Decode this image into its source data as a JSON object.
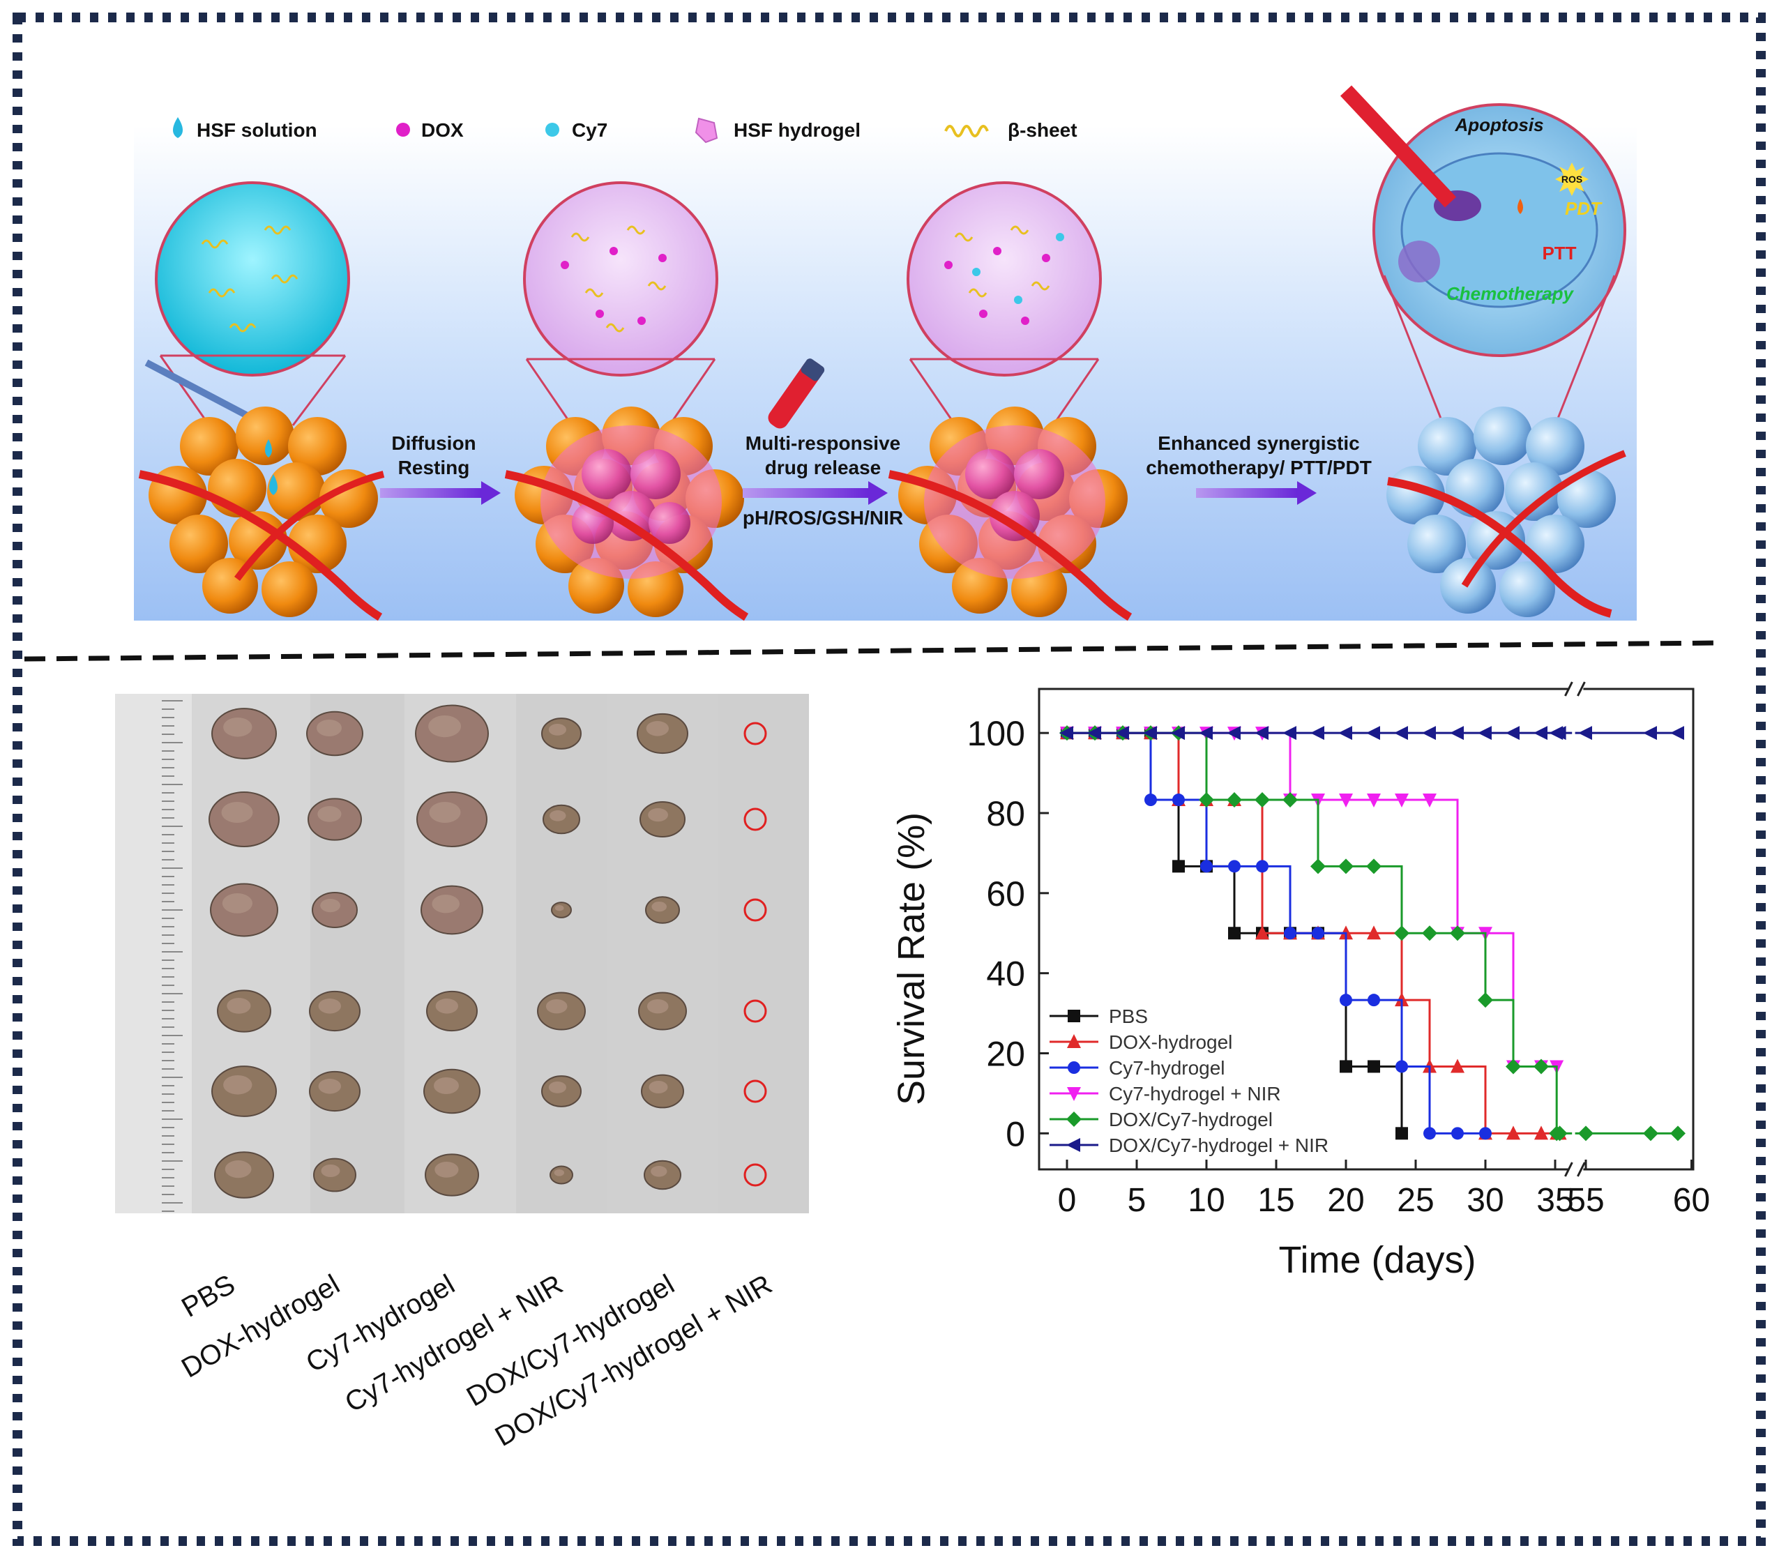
{
  "legend_top": [
    {
      "label": "HSF solution",
      "icon": "drop-icon",
      "color": "#27b8e0"
    },
    {
      "label": "DOX",
      "icon": "dot-icon",
      "color": "#e020c8"
    },
    {
      "label": "Cy7",
      "icon": "dot-icon",
      "color": "#3cc8e8"
    },
    {
      "label": "HSF hydrogel",
      "icon": "gel-icon",
      "color": "#f090e8"
    },
    {
      "label": "β-sheet",
      "icon": "coil-icon",
      "color": "#e8c020"
    }
  ],
  "steps": {
    "step1": [
      "Diffusion",
      "Resting"
    ],
    "step2": [
      "Multi-responsive",
      "drug release"
    ],
    "step2_sub": "pH/ROS/GSH/NIR",
    "step3": [
      "Enhanced synergistic",
      "chemotherapy/ PTT/PDT"
    ]
  },
  "cell_labels": {
    "apoptosis": "Apoptosis",
    "ros": "ROS",
    "pdt": "PDT",
    "ptt": "PTT",
    "chemo": "Chemotherapy"
  },
  "colors": {
    "frame": "#1c2a4a",
    "tumor": "#f08a10",
    "tumor_treated": "#8ec0ea",
    "vessel": "#e02020",
    "gel": "#f070c8",
    "arrow": "#7a3ad8",
    "lens_ring": "#d04060"
  },
  "photo": {
    "groups": [
      "PBS",
      "DOX-hydrogel",
      "Cy7-hydrogel",
      "Cy7-hydrogel + NIR",
      "DOX/Cy7-hydrogel",
      "DOX/Cy7-hydrogel + NIR"
    ]
  },
  "chart_data": {
    "type": "line",
    "xlabel": "Time (days)",
    "ylabel": "Survival Rate (%)",
    "xticks": [
      0,
      5,
      10,
      15,
      20,
      25,
      30,
      35,
      55,
      60
    ],
    "yticks": [
      0,
      20,
      40,
      60,
      80,
      100
    ],
    "ylim": [
      -9,
      111
    ],
    "axis_break": "x between 40 and 55",
    "legend_position": "bottom-left",
    "series": [
      {
        "name": "PBS",
        "color": "#111111",
        "marker": "square",
        "x": [
          0,
          2,
          4,
          6,
          8,
          10,
          12,
          14,
          16,
          18,
          20,
          22,
          24
        ],
        "y": [
          100,
          100,
          100,
          100,
          66.7,
          66.7,
          50,
          50,
          50,
          50,
          16.7,
          16.7,
          0
        ]
      },
      {
        "name": "DOX-hydrogel",
        "color": "#e02a2a",
        "marker": "triangle-up",
        "x": [
          0,
          2,
          4,
          6,
          8,
          10,
          12,
          14,
          16,
          18,
          20,
          22,
          24,
          26,
          28,
          30,
          32,
          34,
          36,
          38
        ],
        "y": [
          100,
          100,
          100,
          100,
          83.3,
          83.3,
          83.3,
          50,
          50,
          50,
          50,
          50,
          33.3,
          16.7,
          16.7,
          0,
          0,
          0,
          0,
          0
        ]
      },
      {
        "name": "Cy7-hydrogel",
        "color": "#1a2ee0",
        "marker": "circle",
        "x": [
          0,
          2,
          4,
          6,
          8,
          10,
          12,
          14,
          16,
          18,
          20,
          22,
          24,
          26,
          28,
          30
        ],
        "y": [
          100,
          100,
          100,
          83.3,
          83.3,
          66.7,
          66.7,
          66.7,
          50,
          50,
          33.3,
          33.3,
          16.7,
          0,
          0,
          0
        ]
      },
      {
        "name": "Cy7-hydrogel + NIR",
        "color": "#f020f0",
        "marker": "triangle-down",
        "x": [
          0,
          2,
          4,
          6,
          8,
          10,
          12,
          14,
          16,
          18,
          20,
          22,
          24,
          26,
          28,
          30,
          32,
          34,
          36
        ],
        "y": [
          100,
          100,
          100,
          100,
          100,
          100,
          100,
          100,
          83.3,
          83.3,
          83.3,
          83.3,
          83.3,
          83.3,
          50,
          50,
          16.7,
          16.7,
          16.7
        ]
      },
      {
        "name": "DOX/Cy7-hydrogel",
        "color": "#1a9a2a",
        "marker": "diamond",
        "x": [
          0,
          2,
          4,
          6,
          8,
          10,
          12,
          14,
          16,
          18,
          20,
          22,
          24,
          26,
          28,
          30,
          32,
          34,
          36,
          38,
          55,
          57,
          59
        ],
        "y": [
          100,
          100,
          100,
          100,
          100,
          83.3,
          83.3,
          83.3,
          83.3,
          66.7,
          66.7,
          66.7,
          50,
          50,
          50,
          33.3,
          16.7,
          16.7,
          0,
          0,
          0,
          0,
          0
        ]
      },
      {
        "name": "DOX/Cy7-hydrogel + NIR",
        "color": "#1a1a8a",
        "marker": "triangle-left",
        "x": [
          0,
          2,
          4,
          6,
          8,
          10,
          12,
          14,
          16,
          18,
          20,
          22,
          24,
          26,
          28,
          30,
          32,
          34,
          36,
          38,
          55,
          57,
          59
        ],
        "y": [
          100,
          100,
          100,
          100,
          100,
          100,
          100,
          100,
          100,
          100,
          100,
          100,
          100,
          100,
          100,
          100,
          100,
          100,
          100,
          100,
          100,
          100,
          100
        ]
      }
    ]
  }
}
